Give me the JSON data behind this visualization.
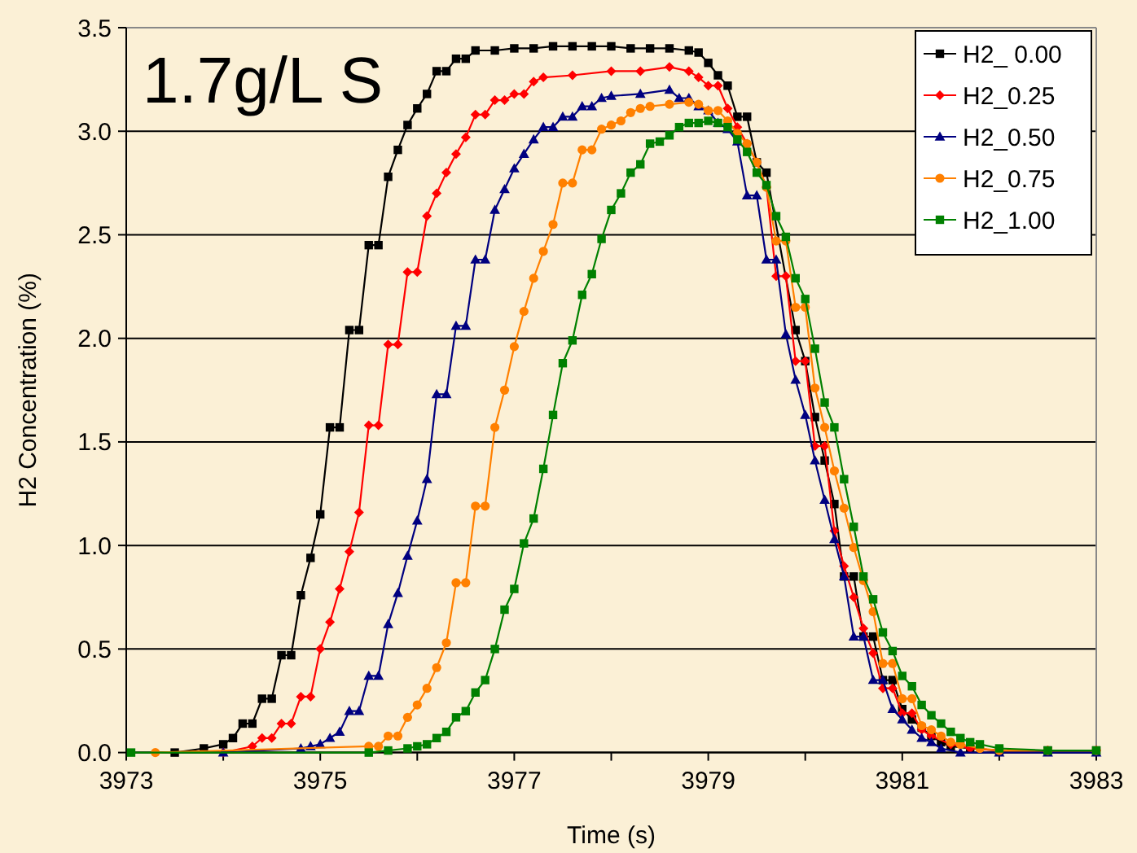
{
  "chart_data": {
    "type": "line",
    "xlabel": "Time (s)",
    "ylabel": "H2 Concentration (%)",
    "annotations": [
      "1.7g/L S"
    ],
    "xlim": [
      3973,
      3983
    ],
    "xticks": [
      3973,
      {
        "value": 3974,
        "label": null
      },
      3975,
      {
        "value": 3976,
        "label": null
      },
      3977,
      {
        "value": 3978,
        "label": null
      },
      3979,
      {
        "value": 3980,
        "label": null
      },
      3981,
      {
        "value": 3982,
        "label": null
      },
      3983
    ],
    "ylim": [
      0,
      3.5
    ],
    "yticks": [
      {
        "value": 0,
        "label": "0.0"
      },
      {
        "value": 0.5,
        "label": "0.5"
      },
      {
        "value": 1,
        "label": "1.0"
      },
      {
        "value": 1.5,
        "label": "1.5"
      },
      {
        "value": 2,
        "label": "2.0"
      },
      {
        "value": 2.5,
        "label": "2.5"
      },
      {
        "value": 3,
        "label": "3.0"
      },
      {
        "value": 3.5,
        "label": "3.5"
      }
    ],
    "grid": "y",
    "legend": "top right",
    "line_style": "solid",
    "series": [
      {
        "name": "H2_ 0.00",
        "color": "#000000",
        "marker": "square",
        "x": [
          3973.5,
          3973.8,
          3974,
          3974.1,
          3974.2,
          3974.3,
          3974.4,
          3974.5,
          3974.6,
          3974.7,
          3974.8,
          3974.9,
          3975,
          3975.1,
          3975.2,
          3975.3,
          3975.4,
          3975.5,
          3975.6,
          3975.7,
          3975.8,
          3975.9,
          3976,
          3976.1,
          3976.2,
          3976.3,
          3976.4,
          3976.5,
          3976.6,
          3976.8,
          3977,
          3977.2,
          3977.4,
          3977.6,
          3977.8,
          3978,
          3978.2,
          3978.4,
          3978.6,
          3978.8,
          3978.9,
          3979,
          3979.1,
          3979.2,
          3979.3,
          3979.4,
          3979.5,
          3979.6,
          3979.9,
          3980,
          3980.1,
          3980.2,
          3980.3,
          3980.4,
          3980.5,
          3980.6,
          3980.7,
          3980.8,
          3980.9,
          3981,
          3981.1,
          3981.2,
          3981.3,
          3981.4,
          3981.5,
          3981.7,
          3982,
          3982.5,
          3983
        ],
        "values": [
          0,
          0.02,
          0.04,
          0.07,
          0.14,
          0.14,
          0.26,
          0.26,
          0.47,
          0.47,
          0.76,
          0.94,
          1.15,
          1.57,
          1.57,
          2.04,
          2.04,
          2.45,
          2.45,
          2.78,
          2.91,
          3.03,
          3.11,
          3.18,
          3.29,
          3.29,
          3.35,
          3.35,
          3.39,
          3.39,
          3.4,
          3.4,
          3.41,
          3.41,
          3.41,
          3.41,
          3.4,
          3.4,
          3.4,
          3.39,
          3.38,
          3.33,
          3.27,
          3.22,
          3.07,
          3.07,
          2.85,
          2.8,
          2.04,
          1.89,
          1.62,
          1.41,
          1.2,
          0.85,
          0.85,
          0.56,
          0.56,
          0.35,
          0.35,
          0.21,
          0.16,
          0.12,
          0.08,
          0.05,
          0.03,
          0.02,
          0.01,
          0.01,
          0.01
        ]
      },
      {
        "name": "H2_0.25",
        "color": "#ff0000",
        "marker": "diamond",
        "x": [
          3974,
          3974.3,
          3974.4,
          3974.5,
          3974.6,
          3974.7,
          3974.8,
          3974.9,
          3975,
          3975.1,
          3975.2,
          3975.3,
          3975.4,
          3975.5,
          3975.6,
          3975.7,
          3975.8,
          3975.9,
          3976,
          3976.1,
          3976.2,
          3976.3,
          3976.4,
          3976.5,
          3976.6,
          3976.7,
          3976.8,
          3976.9,
          3977,
          3977.1,
          3977.2,
          3977.3,
          3977.6,
          3978,
          3978.3,
          3978.6,
          3978.8,
          3978.9,
          3979,
          3979.1,
          3979.2,
          3979.3,
          3979.4,
          3979.5,
          3979.6,
          3979.7,
          3979.8,
          3979.9,
          3980,
          3980.1,
          3980.2,
          3980.3,
          3980.4,
          3980.5,
          3980.6,
          3980.7,
          3980.8,
          3980.9,
          3981,
          3981.1,
          3981.2,
          3981.3,
          3981.5,
          3981.7,
          3982,
          3982.5,
          3983
        ],
        "values": [
          0,
          0.03,
          0.07,
          0.07,
          0.14,
          0.14,
          0.27,
          0.27,
          0.5,
          0.63,
          0.79,
          0.97,
          1.16,
          1.58,
          1.58,
          1.97,
          1.97,
          2.32,
          2.32,
          2.59,
          2.7,
          2.8,
          2.89,
          2.97,
          3.08,
          3.08,
          3.15,
          3.15,
          3.18,
          3.18,
          3.24,
          3.26,
          3.27,
          3.29,
          3.29,
          3.31,
          3.29,
          3.26,
          3.22,
          3.22,
          3.11,
          3.02,
          2.94,
          2.85,
          2.73,
          2.3,
          2.3,
          1.89,
          1.89,
          1.48,
          1.48,
          1.07,
          0.9,
          0.75,
          0.6,
          0.48,
          0.31,
          0.31,
          0.19,
          0.19,
          0.11,
          0.08,
          0.04,
          0.02,
          0.01,
          0.01,
          0.01
        ]
      },
      {
        "name": "H2_0.50",
        "color": "#000080",
        "marker": "triangle",
        "x": [
          3974,
          3974.8,
          3974.9,
          3975,
          3975.1,
          3975.2,
          3975.3,
          3975.4,
          3975.5,
          3975.6,
          3975.7,
          3975.8,
          3975.9,
          3976,
          3976.1,
          3976.2,
          3976.3,
          3976.4,
          3976.5,
          3976.6,
          3976.7,
          3976.8,
          3976.9,
          3977,
          3977.1,
          3977.2,
          3977.3,
          3977.4,
          3977.5,
          3977.6,
          3977.7,
          3977.8,
          3977.9,
          3978,
          3978.3,
          3978.6,
          3978.7,
          3978.8,
          3978.9,
          3979,
          3979.1,
          3979.2,
          3979.3,
          3979.4,
          3979.5,
          3979.6,
          3979.7,
          3979.8,
          3979.9,
          3980,
          3980.1,
          3980.2,
          3980.3,
          3980.4,
          3980.5,
          3980.6,
          3980.7,
          3980.8,
          3980.9,
          3981,
          3981.1,
          3981.2,
          3981.3,
          3981.4,
          3981.6,
          3982,
          3982.5,
          3983
        ],
        "values": [
          0,
          0.02,
          0.03,
          0.04,
          0.07,
          0.1,
          0.2,
          0.2,
          0.37,
          0.37,
          0.62,
          0.77,
          0.95,
          1.12,
          1.32,
          1.73,
          1.73,
          2.06,
          2.06,
          2.38,
          2.38,
          2.62,
          2.72,
          2.82,
          2.89,
          2.96,
          3.02,
          3.02,
          3.07,
          3.07,
          3.12,
          3.12,
          3.16,
          3.17,
          3.18,
          3.2,
          3.16,
          3.16,
          3.12,
          3.1,
          3.04,
          3.01,
          2.95,
          2.69,
          2.69,
          2.38,
          2.38,
          2.02,
          1.8,
          1.63,
          1.41,
          1.22,
          1.03,
          0.85,
          0.56,
          0.56,
          0.35,
          0.35,
          0.21,
          0.16,
          0.11,
          0.07,
          0.05,
          0.02,
          0,
          0,
          0,
          0
        ]
      },
      {
        "name": "H2_0.75",
        "color": "#ff8000",
        "marker": "circle",
        "x": [
          3973.3,
          3975.5,
          3975.6,
          3975.7,
          3975.8,
          3975.9,
          3976,
          3976.1,
          3976.2,
          3976.3,
          3976.4,
          3976.5,
          3976.6,
          3976.7,
          3976.8,
          3976.9,
          3977,
          3977.1,
          3977.2,
          3977.3,
          3977.4,
          3977.5,
          3977.6,
          3977.7,
          3977.8,
          3977.9,
          3978,
          3978.1,
          3978.2,
          3978.3,
          3978.4,
          3978.6,
          3978.8,
          3978.9,
          3979,
          3979.1,
          3979.2,
          3979.3,
          3979.4,
          3979.5,
          3979.6,
          3979.7,
          3979.8,
          3979.9,
          3980,
          3980.1,
          3980.2,
          3980.3,
          3980.4,
          3980.5,
          3980.6,
          3980.7,
          3980.8,
          3980.9,
          3981,
          3981.1,
          3981.2,
          3981.3,
          3981.4,
          3981.5,
          3981.6,
          3981.8,
          3982,
          3982.5,
          3983
        ],
        "values": [
          0,
          0.03,
          0.03,
          0.08,
          0.08,
          0.17,
          0.23,
          0.31,
          0.41,
          0.53,
          0.82,
          0.82,
          1.19,
          1.19,
          1.57,
          1.75,
          1.96,
          2.13,
          2.29,
          2.42,
          2.55,
          2.75,
          2.75,
          2.91,
          2.91,
          3.01,
          3.03,
          3.05,
          3.09,
          3.11,
          3.12,
          3.13,
          3.14,
          3.13,
          3.1,
          3.1,
          3.05,
          2.99,
          2.94,
          2.85,
          2.73,
          2.47,
          2.47,
          2.15,
          2.15,
          1.76,
          1.57,
          1.36,
          1.18,
          0.99,
          0.83,
          0.68,
          0.43,
          0.43,
          0.26,
          0.26,
          0.13,
          0.11,
          0.08,
          0.05,
          0.04,
          0.02,
          0.01,
          0.01,
          0.01
        ]
      },
      {
        "name": "H2_1.00",
        "color": "#008000",
        "marker": "square",
        "x": [
          3973.05,
          3975.5,
          3975.7,
          3975.9,
          3976,
          3976.1,
          3976.2,
          3976.3,
          3976.4,
          3976.5,
          3976.6,
          3976.7,
          3976.8,
          3976.9,
          3977,
          3977.1,
          3977.2,
          3977.3,
          3977.4,
          3977.5,
          3977.6,
          3977.7,
          3977.8,
          3977.9,
          3978,
          3978.1,
          3978.2,
          3978.3,
          3978.4,
          3978.5,
          3978.6,
          3978.7,
          3978.8,
          3978.9,
          3979,
          3979.1,
          3979.2,
          3979.3,
          3979.4,
          3979.5,
          3979.6,
          3979.7,
          3979.8,
          3979.9,
          3980,
          3980.1,
          3980.2,
          3980.3,
          3980.4,
          3980.5,
          3980.6,
          3980.7,
          3980.8,
          3980.9,
          3981,
          3981.1,
          3981.2,
          3981.3,
          3981.4,
          3981.5,
          3981.6,
          3981.7,
          3981.8,
          3982,
          3982.5,
          3983
        ],
        "values": [
          0,
          0,
          0.01,
          0.02,
          0.03,
          0.04,
          0.07,
          0.1,
          0.17,
          0.2,
          0.29,
          0.35,
          0.5,
          0.69,
          0.79,
          1.01,
          1.13,
          1.37,
          1.63,
          1.88,
          1.99,
          2.21,
          2.31,
          2.48,
          2.62,
          2.7,
          2.8,
          2.84,
          2.94,
          2.95,
          2.98,
          3.02,
          3.04,
          3.04,
          3.05,
          3.04,
          3.02,
          2.96,
          2.9,
          2.8,
          2.74,
          2.59,
          2.49,
          2.29,
          2.19,
          1.95,
          1.69,
          1.57,
          1.32,
          1.09,
          0.85,
          0.74,
          0.58,
          0.49,
          0.37,
          0.32,
          0.23,
          0.18,
          0.14,
          0.1,
          0.07,
          0.05,
          0.04,
          0.02,
          0.01,
          0.01
        ]
      }
    ]
  }
}
